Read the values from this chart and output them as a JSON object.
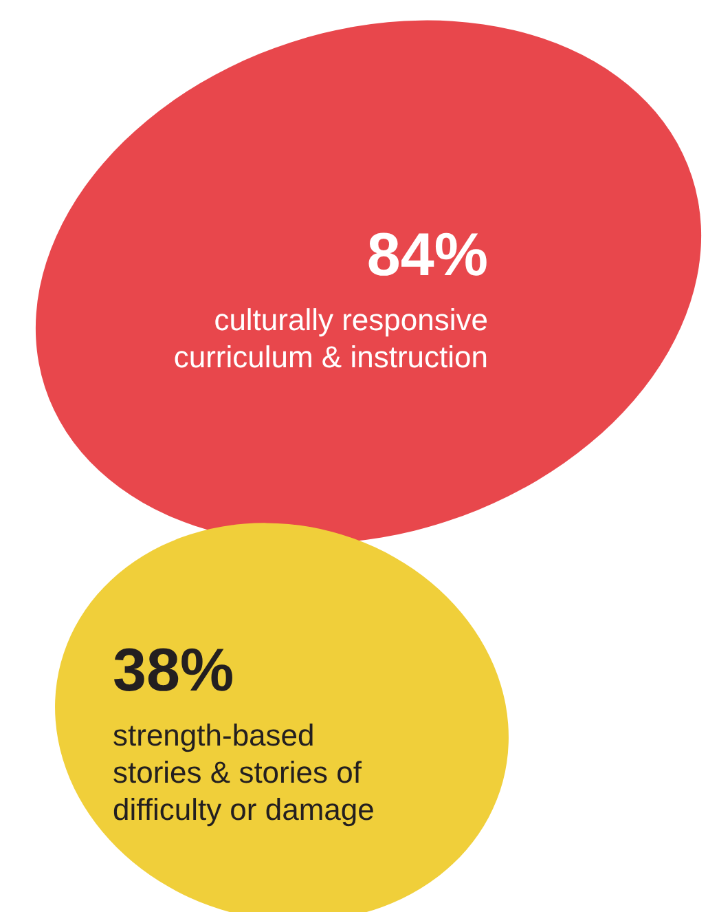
{
  "chart_data": {
    "type": "other",
    "categories": [
      "culturally responsive curriculum & instruction",
      "strength-based stories & stories of difficulty or damage"
    ],
    "values": [
      84,
      38
    ],
    "value_labels": [
      "84%",
      "38%"
    ],
    "colors": [
      "#e8474c",
      "#f0cf3a"
    ]
  }
}
